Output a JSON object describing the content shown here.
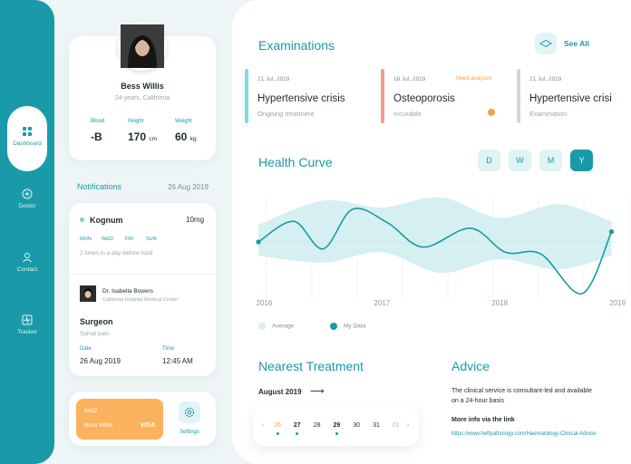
{
  "sidebar": {
    "items": [
      {
        "label": "Dashboard",
        "icon": "grid-icon",
        "active": true
      },
      {
        "label": "Doctor",
        "icon": "plus-circle-icon"
      },
      {
        "label": "Contact",
        "icon": "user-icon"
      },
      {
        "label": "Tracker",
        "icon": "pulse-icon"
      }
    ]
  },
  "profile": {
    "name": "Bess Willis",
    "subtitle": "24 years, California",
    "stats": [
      {
        "label": "Blood",
        "value": "-B",
        "unit": ""
      },
      {
        "label": "Height",
        "value": "170",
        "unit": "cm"
      },
      {
        "label": "Weight",
        "value": "60",
        "unit": "kg"
      }
    ]
  },
  "notifications": {
    "title": "Notifications",
    "date": "26 Aug 2019",
    "medication": {
      "name": "Kognum",
      "dose": "10mg",
      "days": [
        "MON",
        "WED",
        "FRI",
        "SUN"
      ],
      "note": "2 times in a day before food"
    },
    "appointment": {
      "doctor": "Dr. Isabella Bowers",
      "hospital": "California Hospital Medical Center",
      "specialty": "Surgeon",
      "reason": "Spinal pain",
      "date_label": "Date",
      "date": "26 Aug 2019",
      "time_label": "Time",
      "time": "12:45 AM"
    }
  },
  "card": {
    "number": "5432",
    "holder": "Bess Willis",
    "brand": "VISA"
  },
  "settings": {
    "label": "Settings"
  },
  "examinations": {
    "title": "Examinations",
    "see_all": "See All",
    "items": [
      {
        "date": "21 Jul, 2019",
        "title": "Hypertensive crisis",
        "status": "Ongoing treatment",
        "color": "#7fdbe6"
      },
      {
        "date": "18 Jul, 2019",
        "title": "Osteoporosis",
        "status": "Incurable",
        "flag": "Need analyzes",
        "color": "#f5998a"
      },
      {
        "date": "21 Jul, 2019",
        "title": "Hypertensive crisi",
        "status": "Examination",
        "color": "#cfd6d8"
      }
    ]
  },
  "health": {
    "title": "Health Curve",
    "periods": [
      "D",
      "W",
      "M",
      "Y"
    ],
    "active_period": "Y"
  },
  "chart_data": {
    "type": "line",
    "x_ticks": [
      "2016",
      "2017",
      "2018",
      "2019"
    ],
    "legend": [
      "Average",
      "My Data"
    ],
    "series": [
      {
        "name": "My Data",
        "x": [
          2015.95,
          2016.25,
          2016.5,
          2016.75,
          2017.05,
          2017.35,
          2017.75,
          2018.05,
          2018.35,
          2018.7,
          2018.95
        ],
        "y": [
          0,
          0.6,
          -0.2,
          0.95,
          0.55,
          -0.15,
          0.4,
          -0.3,
          -0.35,
          -1.5,
          0.3
        ]
      },
      {
        "name": "Average",
        "x": [
          2015.95,
          2016.5,
          2017.0,
          2017.5,
          2018.0,
          2018.5,
          2018.95
        ],
        "upper": [
          0.5,
          1.2,
          1.0,
          1.3,
          0.7,
          1.1,
          0.6
        ],
        "lower": [
          -0.4,
          -0.6,
          -0.3,
          -0.9,
          -0.5,
          -0.8,
          -0.4
        ]
      }
    ],
    "colors": {
      "my_data": "#1a9aa8",
      "average": "#d6f0f2"
    }
  },
  "treatment": {
    "title": "Nearest Treatment",
    "month": "August 2019",
    "days": [
      {
        "d": "26",
        "color": "#f6a04a",
        "dot": true
      },
      {
        "d": "27",
        "bold": true,
        "dot": true
      },
      {
        "d": "28"
      },
      {
        "d": "29",
        "bold": true,
        "dot": true
      },
      {
        "d": "30"
      },
      {
        "d": "31"
      },
      {
        "d": "01",
        "muted": true
      }
    ]
  },
  "advice": {
    "title": "Advice",
    "text": "The clinical service is consultant-led and available on a 24-hour basis",
    "more": "More info via the link",
    "link": "https://www.heftpathology.com/Haematology-Clinical-Advice"
  }
}
